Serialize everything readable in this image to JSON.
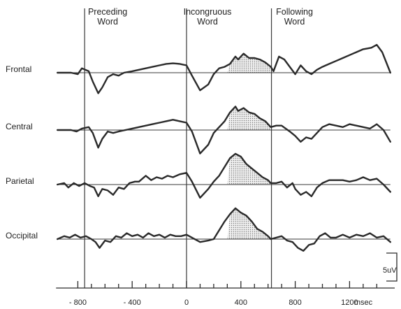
{
  "chart_data": {
    "type": "line",
    "xunit": "msec",
    "xlim": [
      -950,
      1500
    ],
    "xticks": [
      -800,
      -400,
      0,
      400,
      800,
      1200
    ],
    "xtick_labels": [
      "- 800",
      "- 400",
      "0",
      "400",
      "800",
      "1200"
    ],
    "xlabel": "msec",
    "scale_bar_label": "5uV",
    "events": [
      {
        "name_lines": [
          "Preceding",
          "Word"
        ],
        "x": -750
      },
      {
        "name_lines": [
          "Incongruous",
          "Word"
        ],
        "x": 0
      },
      {
        "name_lines": [
          "Following",
          "Word"
        ],
        "x": 625
      }
    ],
    "shaded_window": [
      300,
      620
    ],
    "series": [
      {
        "name": "Frontal",
        "points": [
          [
            -950,
            0
          ],
          [
            -850,
            0
          ],
          [
            -800,
            -0.5
          ],
          [
            -770,
            1.5
          ],
          [
            -720,
            0.5
          ],
          [
            -690,
            -3
          ],
          [
            -650,
            -7
          ],
          [
            -620,
            -5
          ],
          [
            -580,
            -1.5
          ],
          [
            -540,
            -0.5
          ],
          [
            -500,
            -1
          ],
          [
            -460,
            0
          ],
          [
            -400,
            0.5
          ],
          [
            -350,
            1
          ],
          [
            -300,
            1.5
          ],
          [
            -250,
            2
          ],
          [
            -200,
            2.5
          ],
          [
            -150,
            3
          ],
          [
            -100,
            3.2
          ],
          [
            -50,
            3
          ],
          [
            0,
            2.5
          ],
          [
            40,
            -1
          ],
          [
            100,
            -6
          ],
          [
            160,
            -4
          ],
          [
            200,
            -0.5
          ],
          [
            240,
            1.5
          ],
          [
            280,
            2
          ],
          [
            320,
            3
          ],
          [
            360,
            5.5
          ],
          [
            380,
            4.5
          ],
          [
            420,
            6.5
          ],
          [
            460,
            5
          ],
          [
            500,
            5
          ],
          [
            540,
            4.5
          ],
          [
            580,
            3.5
          ],
          [
            620,
            2
          ],
          [
            640,
            0.5
          ],
          [
            680,
            5.5
          ],
          [
            720,
            4.5
          ],
          [
            760,
            2
          ],
          [
            800,
            -0.5
          ],
          [
            840,
            2.5
          ],
          [
            880,
            0.5
          ],
          [
            920,
            -0.5
          ],
          [
            960,
            1
          ],
          [
            1000,
            2
          ],
          [
            1050,
            3
          ],
          [
            1100,
            4
          ],
          [
            1150,
            5
          ],
          [
            1200,
            6
          ],
          [
            1250,
            7
          ],
          [
            1300,
            8
          ],
          [
            1360,
            8.5
          ],
          [
            1400,
            9.5
          ],
          [
            1440,
            7
          ],
          [
            1500,
            0
          ]
        ]
      },
      {
        "name": "Central",
        "points": [
          [
            -950,
            0
          ],
          [
            -850,
            0
          ],
          [
            -810,
            -0.5
          ],
          [
            -770,
            0.5
          ],
          [
            -720,
            1
          ],
          [
            -690,
            -1
          ],
          [
            -650,
            -6
          ],
          [
            -620,
            -3
          ],
          [
            -580,
            -0.5
          ],
          [
            -540,
            -1
          ],
          [
            -500,
            -0.5
          ],
          [
            -450,
            0
          ],
          [
            -400,
            0.5
          ],
          [
            -350,
            1
          ],
          [
            -300,
            1.5
          ],
          [
            -250,
            2
          ],
          [
            -200,
            2.5
          ],
          [
            -150,
            3
          ],
          [
            -100,
            3.5
          ],
          [
            -50,
            3
          ],
          [
            0,
            2.5
          ],
          [
            40,
            -0.5
          ],
          [
            100,
            -8
          ],
          [
            160,
            -5
          ],
          [
            200,
            -1
          ],
          [
            240,
            1
          ],
          [
            280,
            3
          ],
          [
            320,
            6
          ],
          [
            360,
            8
          ],
          [
            380,
            6.5
          ],
          [
            420,
            7.5
          ],
          [
            460,
            6
          ],
          [
            500,
            5.5
          ],
          [
            540,
            4
          ],
          [
            580,
            3
          ],
          [
            620,
            1
          ],
          [
            660,
            1.5
          ],
          [
            700,
            1.5
          ],
          [
            760,
            -0.5
          ],
          [
            800,
            -2
          ],
          [
            840,
            -4
          ],
          [
            880,
            -2.5
          ],
          [
            920,
            -3
          ],
          [
            960,
            -1
          ],
          [
            1000,
            1
          ],
          [
            1050,
            2
          ],
          [
            1100,
            1.5
          ],
          [
            1150,
            1
          ],
          [
            1200,
            2
          ],
          [
            1250,
            1.5
          ],
          [
            1300,
            1
          ],
          [
            1350,
            0.5
          ],
          [
            1400,
            2
          ],
          [
            1450,
            0
          ],
          [
            1500,
            -4
          ]
        ]
      },
      {
        "name": "Parietal",
        "points": [
          [
            -950,
            0
          ],
          [
            -900,
            0.5
          ],
          [
            -870,
            -1
          ],
          [
            -830,
            0.5
          ],
          [
            -790,
            -0.5
          ],
          [
            -750,
            0.5
          ],
          [
            -710,
            -0.5
          ],
          [
            -680,
            -1
          ],
          [
            -650,
            -4
          ],
          [
            -620,
            -1.5
          ],
          [
            -580,
            -2
          ],
          [
            -540,
            -3.5
          ],
          [
            -500,
            -1
          ],
          [
            -460,
            -1.5
          ],
          [
            -420,
            0.5
          ],
          [
            -380,
            1
          ],
          [
            -350,
            1
          ],
          [
            -300,
            3
          ],
          [
            -260,
            1.5
          ],
          [
            -220,
            2.5
          ],
          [
            -180,
            2
          ],
          [
            -140,
            3
          ],
          [
            -100,
            2.5
          ],
          [
            -50,
            3.5
          ],
          [
            0,
            4
          ],
          [
            40,
            1
          ],
          [
            100,
            -4.5
          ],
          [
            160,
            -1.5
          ],
          [
            200,
            1
          ],
          [
            240,
            3
          ],
          [
            280,
            6
          ],
          [
            320,
            9
          ],
          [
            360,
            10.5
          ],
          [
            400,
            9.5
          ],
          [
            440,
            7
          ],
          [
            480,
            5.5
          ],
          [
            520,
            4
          ],
          [
            560,
            2.5
          ],
          [
            600,
            1.5
          ],
          [
            620,
            0.5
          ],
          [
            660,
            0.5
          ],
          [
            700,
            1
          ],
          [
            740,
            -1
          ],
          [
            780,
            0.5
          ],
          [
            800,
            -1.5
          ],
          [
            840,
            -3.5
          ],
          [
            880,
            -2.5
          ],
          [
            920,
            -4
          ],
          [
            960,
            -1
          ],
          [
            1000,
            0.5
          ],
          [
            1050,
            1.5
          ],
          [
            1100,
            1.5
          ],
          [
            1150,
            1.5
          ],
          [
            1200,
            1
          ],
          [
            1250,
            1.5
          ],
          [
            1300,
            2.5
          ],
          [
            1350,
            1.5
          ],
          [
            1400,
            2
          ],
          [
            1450,
            0
          ],
          [
            1500,
            -2.5
          ]
        ]
      },
      {
        "name": "Occipital",
        "points": [
          [
            -950,
            0
          ],
          [
            -900,
            1
          ],
          [
            -860,
            0.5
          ],
          [
            -820,
            1.5
          ],
          [
            -780,
            0.5
          ],
          [
            -740,
            1
          ],
          [
            -700,
            0
          ],
          [
            -670,
            -1
          ],
          [
            -640,
            -3
          ],
          [
            -600,
            -0.5
          ],
          [
            -560,
            -1
          ],
          [
            -520,
            1
          ],
          [
            -480,
            0.5
          ],
          [
            -440,
            2
          ],
          [
            -400,
            1
          ],
          [
            -360,
            1.5
          ],
          [
            -320,
            0.5
          ],
          [
            -280,
            2
          ],
          [
            -240,
            1
          ],
          [
            -200,
            1.5
          ],
          [
            -160,
            0.5
          ],
          [
            -120,
            1.5
          ],
          [
            -80,
            1
          ],
          [
            -40,
            1
          ],
          [
            0,
            1.5
          ],
          [
            40,
            0.5
          ],
          [
            100,
            -1
          ],
          [
            160,
            -0.5
          ],
          [
            200,
            0
          ],
          [
            240,
            3
          ],
          [
            280,
            6
          ],
          [
            320,
            8.5
          ],
          [
            360,
            10.5
          ],
          [
            400,
            9
          ],
          [
            440,
            8
          ],
          [
            480,
            6
          ],
          [
            520,
            3.5
          ],
          [
            560,
            2.5
          ],
          [
            600,
            1
          ],
          [
            620,
            0
          ],
          [
            660,
            0.5
          ],
          [
            700,
            1
          ],
          [
            740,
            -0.5
          ],
          [
            780,
            -1
          ],
          [
            820,
            -3
          ],
          [
            860,
            -4
          ],
          [
            900,
            -2
          ],
          [
            940,
            -1.5
          ],
          [
            980,
            1
          ],
          [
            1020,
            2
          ],
          [
            1060,
            0.5
          ],
          [
            1100,
            0.5
          ],
          [
            1150,
            1.5
          ],
          [
            1200,
            0.5
          ],
          [
            1250,
            1.5
          ],
          [
            1300,
            1
          ],
          [
            1350,
            2
          ],
          [
            1400,
            0.5
          ],
          [
            1450,
            1
          ],
          [
            1500,
            -1
          ]
        ]
      }
    ]
  }
}
